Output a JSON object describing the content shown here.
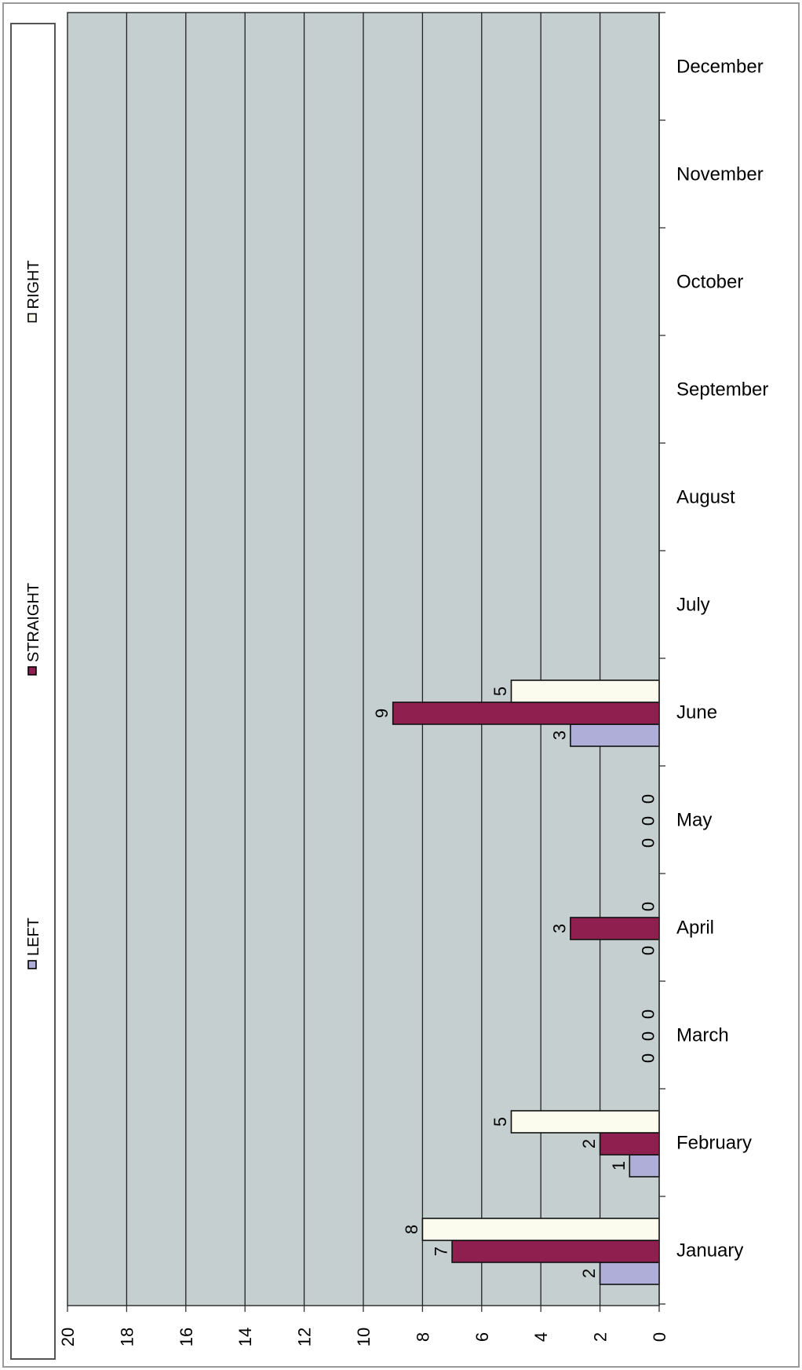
{
  "chart_data": {
    "type": "bar",
    "orientation": "horizontal",
    "categories": [
      "January",
      "February",
      "March",
      "April",
      "May",
      "June",
      "July",
      "August",
      "September",
      "October",
      "November",
      "December"
    ],
    "series": [
      {
        "name": "LEFT",
        "color": "#aeaed8",
        "values": [
          2,
          1,
          0,
          0,
          0,
          3,
          null,
          null,
          null,
          null,
          null,
          null
        ]
      },
      {
        "name": "STRAIGHT",
        "color": "#8e1f4e",
        "values": [
          7,
          2,
          0,
          3,
          0,
          9,
          null,
          null,
          null,
          null,
          null,
          null
        ]
      },
      {
        "name": "RIGHT",
        "color": "#fbfbee",
        "values": [
          8,
          5,
          0,
          0,
          0,
          5,
          null,
          null,
          null,
          null,
          null,
          null
        ]
      }
    ],
    "value_axis": {
      "range": [
        0,
        20
      ],
      "ticks": [
        0,
        2,
        4,
        6,
        8,
        10,
        12,
        14,
        16,
        18,
        20
      ]
    },
    "grid": true,
    "legend_position": "left",
    "title": "",
    "xlabel": "",
    "ylabel": "",
    "plot_background": "#c5cfcf"
  }
}
